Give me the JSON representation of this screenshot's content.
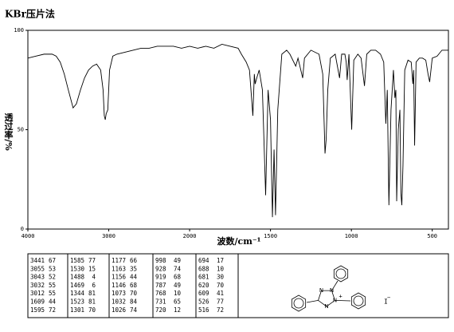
{
  "chart_data": {
    "type": "line",
    "title": "KBr压片法",
    "x_label": "波数/cm⁻¹",
    "y_label": "透过率/%",
    "xlim": [
      4000,
      400
    ],
    "ylim": [
      0,
      100
    ],
    "x_scale_change_at": 2000,
    "xticks": [
      4000,
      3000,
      2000,
      1500,
      1000,
      500
    ],
    "yticks": [
      0,
      50,
      100
    ],
    "x": [
      4000,
      3900,
      3800,
      3700,
      3650,
      3600,
      3550,
      3500,
      3441,
      3400,
      3350,
      3300,
      3250,
      3200,
      3150,
      3100,
      3070,
      3055,
      3043,
      3032,
      3012,
      2990,
      2950,
      2900,
      2800,
      2700,
      2600,
      2500,
      2400,
      2300,
      2200,
      2100,
      2000,
      1950,
      1900,
      1850,
      1800,
      1750,
      1700,
      1680,
      1650,
      1630,
      1609,
      1600,
      1595,
      1585,
      1570,
      1550,
      1530,
      1515,
      1500,
      1488,
      1478,
      1469,
      1455,
      1430,
      1400,
      1380,
      1344,
      1330,
      1301,
      1290,
      1250,
      1200,
      1177,
      1163,
      1156,
      1146,
      1130,
      1100,
      1073,
      1060,
      1040,
      1032,
      1026,
      1015,
      998,
      985,
      960,
      940,
      928,
      919,
      905,
      880,
      850,
      820,
      800,
      787,
      778,
      768,
      755,
      740,
      731,
      725,
      720,
      710,
      700,
      694,
      688,
      681,
      670,
      650,
      630,
      620,
      615,
      609,
      600,
      580,
      560,
      540,
      526,
      516,
      500,
      470,
      440,
      400
    ],
    "series": [
      {
        "color": "#000000",
        "values": [
          86,
          87,
          88,
          88,
          87,
          84,
          78,
          70,
          61,
          63,
          70,
          76,
          80,
          82,
          83,
          80,
          70,
          57,
          55,
          58,
          60,
          80,
          87,
          88,
          89,
          90,
          91,
          91,
          92,
          92,
          92,
          91,
          92,
          91,
          92,
          91,
          93,
          92,
          91,
          88,
          84,
          80,
          57,
          78,
          73,
          76,
          80,
          70,
          17,
          70,
          55,
          6,
          40,
          7,
          60,
          88,
          90,
          88,
          82,
          86,
          76,
          86,
          90,
          88,
          78,
          38,
          45,
          70,
          86,
          88,
          76,
          88,
          88,
          84,
          75,
          88,
          50,
          85,
          88,
          86,
          78,
          72,
          88,
          90,
          90,
          88,
          84,
          53,
          70,
          12,
          60,
          80,
          66,
          70,
          14,
          50,
          60,
          18,
          12,
          32,
          80,
          85,
          84,
          73,
          80,
          42,
          84,
          86,
          86,
          85,
          78,
          74,
          86,
          87,
          90,
          90
        ]
      }
    ]
  },
  "peak_table": {
    "columns": [
      [
        [
          3441,
          67
        ],
        [
          3055,
          53
        ],
        [
          3043,
          52
        ],
        [
          3032,
          55
        ],
        [
          3012,
          55
        ],
        [
          1609,
          44
        ],
        [
          1595,
          72
        ]
      ],
      [
        [
          1585,
          77
        ],
        [
          1530,
          15
        ],
        [
          1488,
          4
        ],
        [
          1469,
          6
        ],
        [
          1344,
          81
        ],
        [
          1523,
          81
        ],
        [
          1301,
          70
        ]
      ],
      [
        [
          1177,
          66
        ],
        [
          1163,
          35
        ],
        [
          1156,
          44
        ],
        [
          1146,
          68
        ],
        [
          1073,
          70
        ],
        [
          1032,
          84
        ],
        [
          1026,
          74
        ]
      ],
      [
        [
          998,
          49
        ],
        [
          928,
          74
        ],
        [
          919,
          68
        ],
        [
          787,
          49
        ],
        [
          768,
          10
        ],
        [
          731,
          65
        ],
        [
          720,
          12
        ]
      ],
      [
        [
          694,
          17
        ],
        [
          688,
          10
        ],
        [
          681,
          30
        ],
        [
          620,
          70
        ],
        [
          609,
          41
        ],
        [
          526,
          77
        ],
        [
          516,
          72
        ]
      ]
    ]
  },
  "structure": {
    "atoms": [
      "N",
      "N",
      "N",
      "N"
    ],
    "charge": "+",
    "counter_ion": "I",
    "counter_charge": "−"
  }
}
